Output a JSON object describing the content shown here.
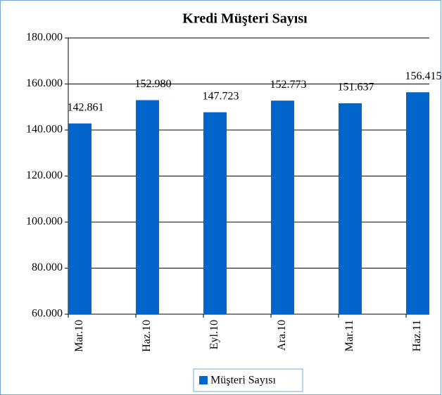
{
  "chart_data": {
    "type": "bar",
    "title": "Kredi Müşteri Sayısı",
    "categories": [
      "Mar.10",
      "Haz.10",
      "Eyl.10",
      "Ara.10",
      "Mar.11",
      "Haz.11"
    ],
    "series": [
      {
        "name": "Müşteri Sayısı",
        "color": "#0066cc",
        "values": [
          142861,
          152980,
          147723,
          152773,
          151637,
          156415
        ],
        "value_labels": [
          "142.861",
          "152.980",
          "147.723",
          "152.773",
          "151.637",
          "156.415"
        ]
      }
    ],
    "ylim": [
      60000,
      180000
    ],
    "yticks": [
      {
        "value": 60000,
        "label": "60.000"
      },
      {
        "value": 80000,
        "label": "80.000"
      },
      {
        "value": 100000,
        "label": "100.000"
      },
      {
        "value": 120000,
        "label": "120.000"
      },
      {
        "value": 140000,
        "label": "140.000"
      },
      {
        "value": 160000,
        "label": "160.000"
      },
      {
        "value": 180000,
        "label": "180.000"
      }
    ],
    "grid": true,
    "legend": "bottom"
  }
}
